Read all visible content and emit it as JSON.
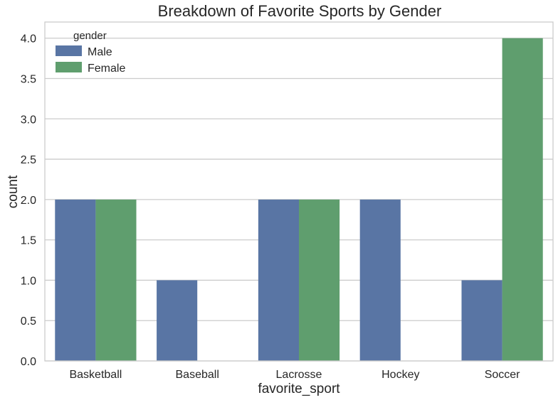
{
  "chart_data": {
    "type": "bar",
    "title": "Breakdown of Favorite Sports by Gender",
    "xlabel": "favorite_sport",
    "ylabel": "count",
    "categories": [
      "Basketball",
      "Baseball",
      "Lacrosse",
      "Hockey",
      "Soccer"
    ],
    "series": [
      {
        "name": "Male",
        "values": [
          2,
          1,
          2,
          2,
          1
        ],
        "color": "#5975a4"
      },
      {
        "name": "Female",
        "values": [
          2,
          0,
          2,
          0,
          4
        ],
        "color": "#5f9e6e"
      }
    ],
    "ylim": [
      0,
      4.2
    ],
    "yticks": [
      0.0,
      0.5,
      1.0,
      1.5,
      2.0,
      2.5,
      3.0,
      3.5,
      4.0
    ],
    "ytick_labels": [
      "0.0",
      "0.5",
      "1.0",
      "1.5",
      "2.0",
      "2.5",
      "3.0",
      "3.5",
      "4.0"
    ],
    "grid": true,
    "legend": {
      "title": "gender",
      "position": "top-left"
    }
  }
}
